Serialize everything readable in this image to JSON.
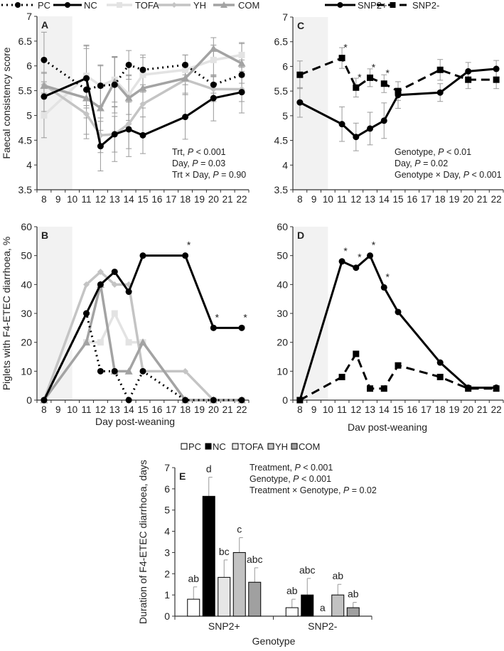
{
  "legend_treatment": [
    "PC",
    "NC",
    "TOFA",
    "YH",
    "COM"
  ],
  "legend_genotype": [
    "SNP2+",
    "SNP2-"
  ],
  "chart_data": [
    {
      "panel": "A",
      "type": "line",
      "title": "",
      "ylabel": "Faecal consistency score",
      "xlabel": "",
      "ylim": [
        3.5,
        7
      ],
      "yticks": [
        "3.5",
        "4",
        "4.5",
        "5",
        "5.5",
        "6",
        "6.5",
        "7"
      ],
      "ytick_values": [
        3.5,
        4,
        4.5,
        5,
        5.5,
        6,
        6.5,
        7
      ],
      "categories": [
        "8",
        "9",
        "10",
        "11",
        "12",
        "13",
        "14",
        "15",
        "16",
        "17",
        "18",
        "19",
        "20",
        "21",
        "22"
      ],
      "shaded_days": [
        8,
        10
      ],
      "x": [
        8,
        11,
        12,
        13,
        14,
        15,
        18,
        20,
        22
      ],
      "series": [
        {
          "name": "PC",
          "color": "#000000",
          "values": [
            6.12,
            5.52,
            5.6,
            5.62,
            6.02,
            5.92,
            6.02,
            5.62,
            5.82
          ],
          "err": [
            0.56,
            0.9,
            0.42,
            0.57,
            0.29,
            0.3,
            0.2,
            0.17,
            0.3
          ]
        },
        {
          "name": "NC",
          "color": "#000000",
          "values": [
            5.38,
            5.75,
            4.38,
            4.62,
            4.72,
            4.6,
            4.97,
            5.35,
            5.47
          ],
          "err": [
            0.3,
            0.6,
            0.5,
            0.55,
            0.55,
            0.37,
            0.45,
            0.46,
            0.42
          ]
        },
        {
          "name": "TOFA",
          "color": "#e3e3e3",
          "values": [
            5.0,
            5.8,
            5.6,
            5.72,
            5.42,
            5.82,
            5.92,
            6.12,
            6.22
          ],
          "err": [
            0.45,
            0.6,
            0.4,
            0.45,
            0.4,
            0.35,
            0.3,
            0.3,
            0.25
          ]
        },
        {
          "name": "YH",
          "color": "#c4c4c4",
          "values": [
            5.62,
            5.03,
            4.6,
            4.62,
            4.83,
            5.23,
            5.72,
            5.53,
            5.53
          ],
          "err": [
            0.25,
            0.5,
            0.35,
            0.36,
            0.5,
            0.6,
            0.3,
            0.25,
            0.25
          ]
        },
        {
          "name": "COM",
          "color": "#a3a3a3",
          "values": [
            5.6,
            5.35,
            5.15,
            5.68,
            5.35,
            5.55,
            5.75,
            6.35,
            6.05
          ],
          "err": [
            0.25,
            0.4,
            0.45,
            0.5,
            0.45,
            0.4,
            0.3,
            0.22,
            0.4
          ]
        }
      ],
      "stats": [
        [
          "Trt, ",
          "P",
          " < 0.001"
        ],
        [
          "Day, ",
          "P",
          " = 0.03"
        ],
        [
          "Trt × Day, ",
          "P",
          " = 0.90"
        ]
      ],
      "stars": []
    },
    {
      "panel": "B",
      "type": "line",
      "ylabel": "Piglets with F4-ETEC diarrhoea, %",
      "xlabel": "Day post-weaning",
      "ylim": [
        0,
        60
      ],
      "yticks": [
        "0",
        "10",
        "20",
        "30",
        "40",
        "50",
        "60"
      ],
      "ytick_values": [
        0,
        10,
        20,
        30,
        40,
        50,
        60
      ],
      "categories": [
        "8",
        "9",
        "10",
        "11",
        "12",
        "13",
        "14",
        "15",
        "16",
        "17",
        "18",
        "19",
        "20",
        "21",
        "22"
      ],
      "shaded_days": [
        8,
        10
      ],
      "x": [
        8,
        11,
        12,
        13,
        14,
        15,
        18,
        20,
        22
      ],
      "series": [
        {
          "name": "PC",
          "color": "#000000",
          "values": [
            0,
            30,
            10,
            10,
            0,
            10,
            0,
            0,
            0
          ]
        },
        {
          "name": "NC",
          "color": "#000000",
          "values": [
            0,
            30,
            40,
            44.4,
            37.5,
            50,
            50,
            25,
            25
          ]
        },
        {
          "name": "TOFA",
          "color": "#e3e3e3",
          "values": [
            0,
            20,
            20,
            30,
            20,
            20,
            0,
            0,
            0
          ]
        },
        {
          "name": "YH",
          "color": "#c4c4c4",
          "values": [
            0,
            40,
            44.4,
            40,
            40,
            10,
            10,
            0,
            0
          ]
        },
        {
          "name": "COM",
          "color": "#a3a3a3",
          "values": [
            0,
            20,
            40,
            10,
            10,
            20,
            0,
            0,
            0
          ]
        }
      ],
      "stats": [],
      "stars": [
        {
          "series": "NC",
          "x": 18,
          "label": "*"
        },
        {
          "series": "NC",
          "x": 20,
          "label": "*"
        },
        {
          "series": "NC",
          "x": 22,
          "label": "*"
        }
      ]
    },
    {
      "panel": "C",
      "type": "line",
      "ylabel": "",
      "xlabel": "",
      "ylim": [
        3.5,
        7
      ],
      "yticks": [
        "3.5",
        "4",
        "4.5",
        "5",
        "5.5",
        "6",
        "6.5",
        "7"
      ],
      "ytick_values": [
        3.5,
        4,
        4.5,
        5,
        5.5,
        6,
        6.5,
        7
      ],
      "categories": [
        "8",
        "9",
        "10",
        "11",
        "12",
        "13",
        "14",
        "15",
        "16",
        "17",
        "18",
        "19",
        "20",
        "21",
        "22"
      ],
      "shaded_days": [
        8,
        10
      ],
      "x": [
        8,
        11,
        12,
        13,
        14,
        15,
        18,
        20,
        22
      ],
      "series": [
        {
          "name": "SNP2+",
          "color": "#000000",
          "values": [
            5.27,
            4.83,
            4.57,
            4.74,
            4.9,
            5.42,
            5.47,
            5.9,
            5.95
          ],
          "err": [
            0.3,
            0.35,
            0.28,
            0.33,
            0.36,
            0.27,
            0.18,
            0.18,
            0.17
          ]
        },
        {
          "name": "SNP2-",
          "color": "#000000",
          "values": [
            5.83,
            6.17,
            5.57,
            5.77,
            5.65,
            5.5,
            5.93,
            5.73,
            5.73
          ],
          "err": [
            0.28,
            0.21,
            0.19,
            0.18,
            0.18,
            0.19,
            0.21,
            0.18,
            0.18
          ]
        }
      ],
      "stats": [
        [
          "Genotype, ",
          "P",
          " < 0.01"
        ],
        [
          "Day, ",
          "P",
          " = 0.02"
        ],
        [
          "Genotype × Day, ",
          "P",
          " < 0.001"
        ]
      ],
      "stars": [
        {
          "series": "SNP2-",
          "x": 11,
          "label": "*"
        },
        {
          "series": "SNP2-",
          "x": 12,
          "label": "*"
        },
        {
          "series": "SNP2-",
          "x": 13,
          "label": "*"
        },
        {
          "series": "SNP2-",
          "x": 14,
          "label": "*"
        }
      ]
    },
    {
      "panel": "D",
      "type": "line",
      "ylabel": "",
      "xlabel": "Dav post-weaning",
      "ylim": [
        0,
        60
      ],
      "yticks": [
        "0",
        "10",
        "20",
        "30",
        "40",
        "50",
        "60"
      ],
      "ytick_values": [
        0,
        10,
        20,
        30,
        40,
        50,
        60
      ],
      "categories": [
        "8",
        "9",
        "10",
        "11",
        "12",
        "13",
        "14",
        "15",
        "16",
        "17",
        "18",
        "19",
        "20",
        "21",
        "22"
      ],
      "shaded_days": [
        8,
        10
      ],
      "x": [
        8,
        11,
        12,
        13,
        14,
        15,
        18,
        20,
        22
      ],
      "series": [
        {
          "name": "SNP2+",
          "color": "#000000",
          "values": [
            0,
            48,
            45.8,
            50,
            39,
            30.5,
            13,
            4.3,
            4.3
          ]
        },
        {
          "name": "SNP2-",
          "color": "#000000",
          "values": [
            0,
            8,
            16,
            4,
            4,
            12,
            8,
            4,
            4
          ]
        }
      ],
      "stats": [],
      "stars": [
        {
          "series": "SNP2+",
          "x": 11,
          "label": "*"
        },
        {
          "series": "SNP2+",
          "x": 12,
          "label": "*"
        },
        {
          "series": "SNP2+",
          "x": 13,
          "label": "*"
        },
        {
          "series": "SNP2+",
          "x": 14,
          "label": "*"
        }
      ]
    },
    {
      "panel": "E",
      "type": "bar",
      "ylabel": "Duration of F4-ETEC diarrhoea, days",
      "xlabel": "Genotype",
      "ylim": [
        0,
        7
      ],
      "yticks": [
        "0",
        "1",
        "2",
        "3",
        "4",
        "5",
        "6",
        "7"
      ],
      "ytick_values": [
        0,
        1,
        2,
        3,
        4,
        5,
        6,
        7
      ],
      "categories": [
        "SNP2+",
        "SNP2-"
      ],
      "series": [
        {
          "name": "PC",
          "color": "#ffffff",
          "values": [
            0.8,
            0.4
          ],
          "err": [
            0.58,
            0.4
          ],
          "letters": [
            "ab",
            "ab"
          ]
        },
        {
          "name": "NC",
          "color": "#000000",
          "values": [
            5.65,
            1.0
          ],
          "err": [
            0.9,
            0.78
          ],
          "letters": [
            "d",
            "abc"
          ]
        },
        {
          "name": "TOFA",
          "color": "#e6e6e6",
          "values": [
            1.83,
            0
          ],
          "err": [
            0.82,
            0
          ],
          "letters": [
            "bc",
            "a"
          ]
        },
        {
          "name": "YH",
          "color": "#c2c2c2",
          "values": [
            3.0,
            1.0
          ],
          "err": [
            0.7,
            0.5
          ],
          "letters": [
            "c",
            "ab"
          ]
        },
        {
          "name": "COM",
          "color": "#a0a0a0",
          "values": [
            1.6,
            0.4
          ],
          "err": [
            0.68,
            0.25
          ],
          "letters": [
            "abc",
            "ab"
          ]
        }
      ],
      "stats": [
        [
          "Treatment, ",
          "P",
          " < 0.001"
        ],
        [
          "Genotype, ",
          "P",
          " < 0.001"
        ],
        [
          "Treatment × Genotype, ",
          "P",
          " = 0.02"
        ]
      ]
    }
  ]
}
